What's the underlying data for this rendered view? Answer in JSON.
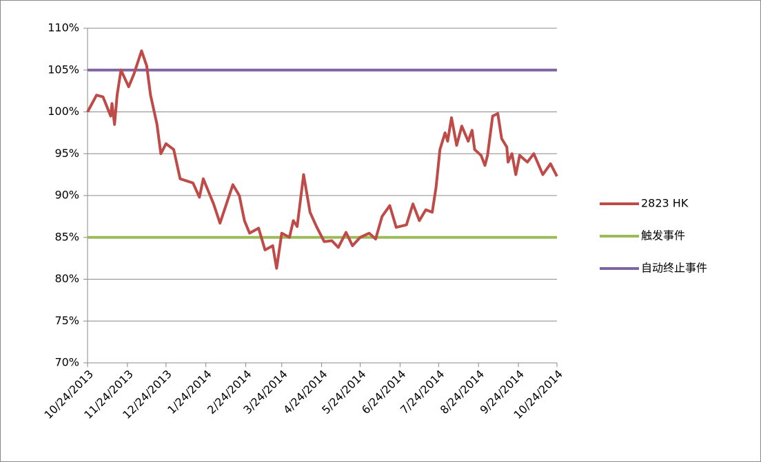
{
  "chart_data": {
    "type": "line",
    "xlim": [
      "10/24/2013",
      "10/24/2014"
    ],
    "xticks": [
      "10/24/2013",
      "11/24/2013",
      "12/24/2013",
      "1/24/2014",
      "2/24/2014",
      "3/24/2014",
      "4/24/2014",
      "5/24/2014",
      "6/24/2014",
      "7/24/2014",
      "8/24/2014",
      "9/24/2014",
      "10/24/2014"
    ],
    "ylim": [
      70,
      110
    ],
    "yticks": [
      {
        "value": 70,
        "label": "70%"
      },
      {
        "value": 75,
        "label": "75%"
      },
      {
        "value": 80,
        "label": "80%"
      },
      {
        "value": 85,
        "label": "85%"
      },
      {
        "value": 90,
        "label": "90%"
      },
      {
        "value": 95,
        "label": "95%"
      },
      {
        "value": 100,
        "label": "100%"
      },
      {
        "value": 105,
        "label": "105%"
      },
      {
        "value": 110,
        "label": "110%"
      }
    ],
    "grid": true,
    "legend": "right",
    "series": [
      {
        "name": "2823 HK",
        "color": "#be4b48",
        "x": [
          "10/24/2013",
          "10/31/2013",
          "11/5/2013",
          "11/11/2013",
          "11/12/2013",
          "11/14/2013",
          "11/16/2013",
          "11/19/2013",
          "11/25/2013",
          "11/29/2013",
          "12/5/2013",
          "12/9/2013",
          "12/12/2013",
          "12/17/2013",
          "12/20/2013",
          "12/24/2013",
          "12/30/2013",
          "1/4/2014",
          "1/14/2014",
          "1/19/2014",
          "1/22/2014",
          "1/30/2014",
          "2/4/2014",
          "2/9/2014",
          "2/14/2014",
          "2/19/2014",
          "2/23/2014",
          "2/27/2014",
          "3/6/2014",
          "3/11/2014",
          "3/17/2014",
          "3/20/2014",
          "3/24/2014",
          "3/30/2014",
          "4/2/2014",
          "4/5/2014",
          "4/10/2014",
          "4/15/2014",
          "4/20/2014",
          "4/26/2014",
          "5/2/2014",
          "5/7/2014",
          "5/13/2014",
          "5/18/2014",
          "5/24/2014",
          "5/31/2014",
          "6/5/2014",
          "6/10/2014",
          "6/16/2014",
          "6/21/2014",
          "6/29/2014",
          "7/4/2014",
          "7/9/2014",
          "7/14/2014",
          "7/19/2014",
          "7/22/2014",
          "7/25/2014",
          "7/29/2014",
          "7/31/2014",
          "8/3/2014",
          "8/7/2014",
          "8/11/2014",
          "8/16/2014",
          "8/19/2014",
          "8/21/2014",
          "8/26/2014",
          "8/29/2014",
          "8/31/2014",
          "9/4/2014",
          "9/8/2014",
          "9/11/2014",
          "9/15/2014",
          "9/16/2014",
          "9/19/2014",
          "9/22/2014",
          "9/25/2014",
          "10/1/2014",
          "10/6/2014",
          "10/13/2014",
          "10/19/2014",
          "10/24/2014"
        ],
        "values": [
          100,
          102,
          101.8,
          99.5,
          101,
          98.5,
          102,
          105,
          103,
          104.5,
          107.3,
          105.5,
          102,
          98.5,
          95,
          96.2,
          95.5,
          92,
          91.5,
          89.8,
          92,
          89,
          86.7,
          89,
          91.3,
          90,
          87,
          85.5,
          86.1,
          83.5,
          84,
          81.3,
          85.5,
          85,
          87,
          86.3,
          92.5,
          88,
          86.3,
          84.5,
          84.6,
          83.8,
          85.6,
          84,
          85,
          85.5,
          84.8,
          87.5,
          88.8,
          86.2,
          86.5,
          89,
          87,
          88.3,
          88,
          91,
          95.5,
          97.5,
          96.5,
          99.3,
          96,
          98.3,
          96.5,
          97.8,
          95.5,
          94.8,
          93.6,
          94.8,
          99.5,
          99.8,
          96.8,
          95.8,
          94,
          95,
          92.5,
          94.8,
          94,
          95,
          92.5,
          93.8,
          92.3
        ]
      },
      {
        "name": "触发事件",
        "color": "#9bbb59",
        "x": [
          "10/24/2013",
          "10/24/2014"
        ],
        "values": [
          85,
          85
        ]
      },
      {
        "name": "自动终止事件",
        "color": "#8064a2",
        "x": [
          "10/24/2013",
          "10/24/2014"
        ],
        "values": [
          105,
          105
        ]
      }
    ]
  }
}
